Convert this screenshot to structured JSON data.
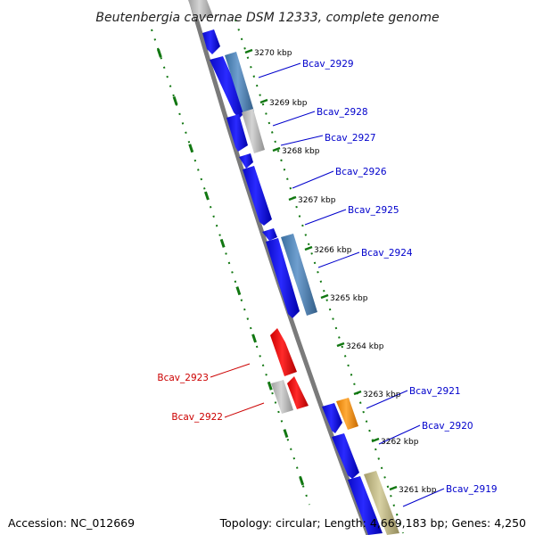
{
  "title": "Beutenbergia cavernae DSM 12333, complete genome",
  "footer": {
    "accession": "Accession: NC_012669",
    "topology": "Topology: circular; Length: 4,669,183 bp; Genes: 4,250"
  },
  "colors": {
    "forward_label": "#0000cc",
    "reverse_label": "#cc0000",
    "cds_blue": "#1515ee",
    "rna_steelblue": "#4f86b8",
    "pseudo_gray": "#b9b9b9",
    "cds_red": "#ee1111",
    "cds_orange": "#f7940e",
    "cds_khaki": "#bdb582",
    "tick_green": "#117711",
    "backbone_gray": "#7a7a7a"
  },
  "ticks": [
    {
      "label": "3270 kbp"
    },
    {
      "label": "3269 kbp"
    },
    {
      "label": "3268 kbp"
    },
    {
      "label": "3267 kbp"
    },
    {
      "label": "3266 kbp"
    },
    {
      "label": "3265 kbp"
    },
    {
      "label": "3264 kbp"
    },
    {
      "label": "3263 kbp"
    },
    {
      "label": "3262 kbp"
    },
    {
      "label": "3261 kbp"
    }
  ],
  "gene_labels": {
    "forward": [
      {
        "label": "Bcav_2929"
      },
      {
        "label": "Bcav_2928"
      },
      {
        "label": "Bcav_2927"
      },
      {
        "label": "Bcav_2926"
      },
      {
        "label": "Bcav_2925"
      },
      {
        "label": "Bcav_2924"
      },
      {
        "label": "Bcav_2921"
      },
      {
        "label": "Bcav_2920"
      },
      {
        "label": "Bcav_2919"
      }
    ],
    "reverse": [
      {
        "label": "Bcav_2923"
      },
      {
        "label": "Bcav_2922"
      }
    ]
  }
}
